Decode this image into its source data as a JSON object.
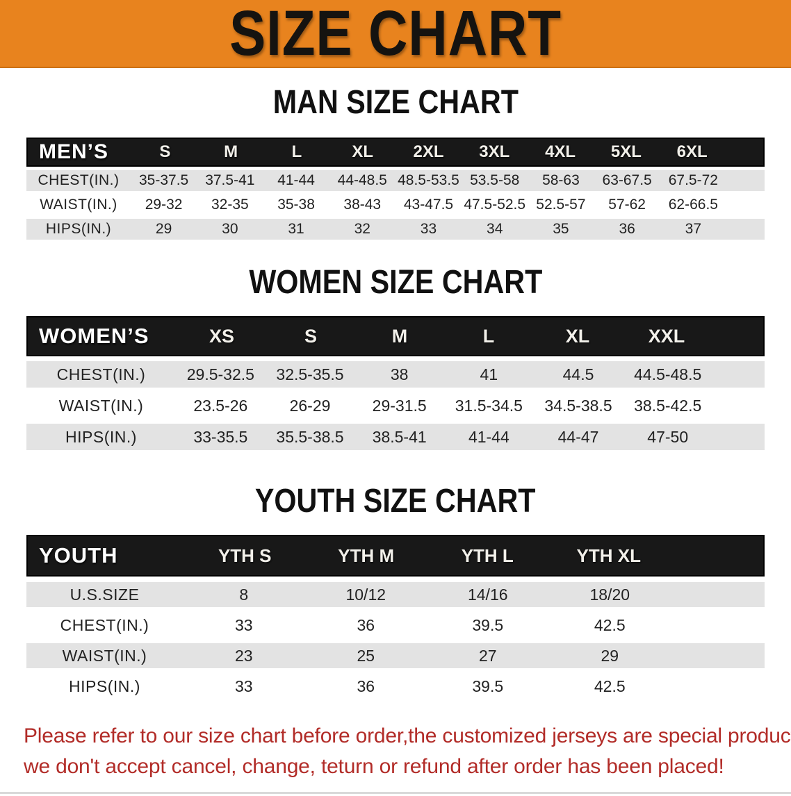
{
  "banner": {
    "title": "SIZE CHART"
  },
  "colors": {
    "banner-bg": "#E8831E",
    "bar-bg": "#181818",
    "stripe": "#E3E3E3",
    "disclaimer": "#B22C28"
  },
  "sections": [
    {
      "heading": "MAN SIZE CHART",
      "table": {
        "title": "MEN’S",
        "columns": [
          "S",
          "M",
          "L",
          "XL",
          "2XL",
          "3XL",
          "4XL",
          "5XL",
          "6XL"
        ],
        "rows": [
          {
            "label": "CHEST(IN.)",
            "values": [
              "35-37.5",
              "37.5-41",
              "41-44",
              "44-48.5",
              "48.5-53.5",
              "53.5-58",
              "58-63",
              "63-67.5",
              "67.5-72"
            ]
          },
          {
            "label": "WAIST(IN.)",
            "values": [
              "29-32",
              "32-35",
              "35-38",
              "38-43",
              "43-47.5",
              "47.5-52.5",
              "52.5-57",
              "57-62",
              "62-66.5"
            ]
          },
          {
            "label": "HIPS(IN.)",
            "values": [
              "29",
              "30",
              "31",
              "32",
              "33",
              "34",
              "35",
              "36",
              "37"
            ]
          }
        ]
      }
    },
    {
      "heading": "WOMEN SIZE CHART",
      "table": {
        "title": "WOMEN’S",
        "columns": [
          "XS",
          "S",
          "M",
          "L",
          "XL",
          "XXL"
        ],
        "rows": [
          {
            "label": "CHEST(IN.)",
            "values": [
              "29.5-32.5",
              "32.5-35.5",
              "38",
              "41",
              "44.5",
              "44.5-48.5"
            ]
          },
          {
            "label": "WAIST(IN.)",
            "values": [
              "23.5-26",
              "26-29",
              "29-31.5",
              "31.5-34.5",
              "34.5-38.5",
              "38.5-42.5"
            ]
          },
          {
            "label": "HIPS(IN.)",
            "values": [
              "33-35.5",
              "35.5-38.5",
              "38.5-41",
              "41-44",
              "44-47",
              "47-50"
            ]
          }
        ]
      }
    },
    {
      "heading": "YOUTH SIZE CHART",
      "table": {
        "title": "YOUTH",
        "columns": [
          "YTH S",
          "YTH M",
          "YTH L",
          "YTH XL"
        ],
        "rows": [
          {
            "label": "U.S.SIZE",
            "values": [
              "8",
              "10/12",
              "14/16",
              "18/20"
            ]
          },
          {
            "label": "CHEST(IN.)",
            "values": [
              "33",
              "36",
              "39.5",
              "42.5"
            ]
          },
          {
            "label": "WAIST(IN.)",
            "values": [
              "23",
              "25",
              "27",
              "29"
            ]
          },
          {
            "label": "HIPS(IN.)",
            "values": [
              "33",
              "36",
              "39.5",
              "42.5"
            ]
          }
        ]
      }
    }
  ],
  "disclaimer": {
    "line1": "Please refer to our size chart before order,the customized jerseys are special products,",
    "line2": "we don't accept cancel, change, teturn or refund after order has been placed!"
  }
}
